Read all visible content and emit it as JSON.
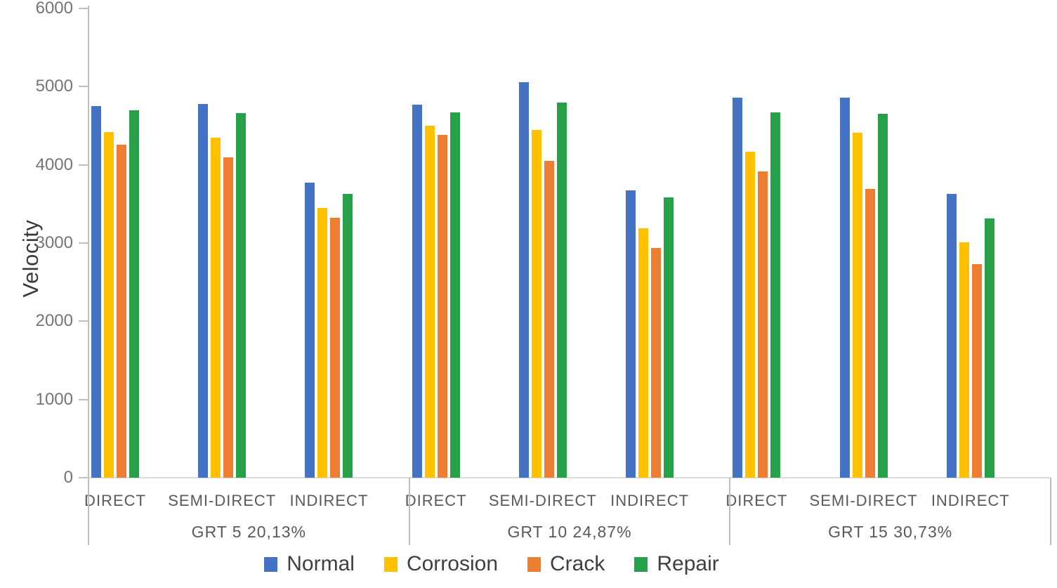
{
  "chart_data": {
    "type": "bar",
    "title": "",
    "ylabel": "Velocity",
    "xlabel": "",
    "ylim": [
      0,
      6000
    ],
    "yticks": [
      0,
      1000,
      2000,
      3000,
      4000,
      5000,
      6000
    ],
    "grid": false,
    "legend_position": "bottom",
    "axis_colors": {
      "axis_line": "#bfbfbf",
      "tick_label": "#757575",
      "category_label": "#595959",
      "legend_text": "#3f3f3f"
    },
    "series": [
      {
        "name": "Normal",
        "color": "#4472c4"
      },
      {
        "name": "Corrosion",
        "color": "#ffc000"
      },
      {
        "name": "Crack",
        "color": "#ed7d31"
      },
      {
        "name": "Repair",
        "color": "#26a049"
      }
    ],
    "groups": [
      {
        "label": "GRT 5 20,13%",
        "clusters": [
          {
            "label": "DIRECT",
            "values": [
              4750,
              4420,
              4260,
              4700
            ]
          },
          {
            "label": "SEMI-DIRECT",
            "values": [
              4780,
              4350,
              4100,
              4660
            ]
          },
          {
            "label": "INDIRECT",
            "values": [
              3770,
              3450,
              3320,
              3630
            ]
          }
        ]
      },
      {
        "label": "GRT 10 24,87%",
        "clusters": [
          {
            "label": "DIRECT",
            "values": [
              4770,
              4500,
              4380,
              4670
            ]
          },
          {
            "label": "SEMI-DIRECT",
            "values": [
              5060,
              4450,
              4050,
              4800
            ]
          },
          {
            "label": "INDIRECT",
            "values": [
              3670,
              3190,
              2940,
              3580
            ]
          }
        ]
      },
      {
        "label": "GRT 15 30,73%",
        "clusters": [
          {
            "label": "DIRECT",
            "values": [
              4860,
              4170,
              3920,
              4670
            ]
          },
          {
            "label": "SEMI-DIRECT",
            "values": [
              4860,
              4410,
              3690,
              4650
            ]
          },
          {
            "label": "INDIRECT",
            "values": [
              3630,
              3010,
              2730,
              3310
            ]
          }
        ]
      }
    ]
  }
}
